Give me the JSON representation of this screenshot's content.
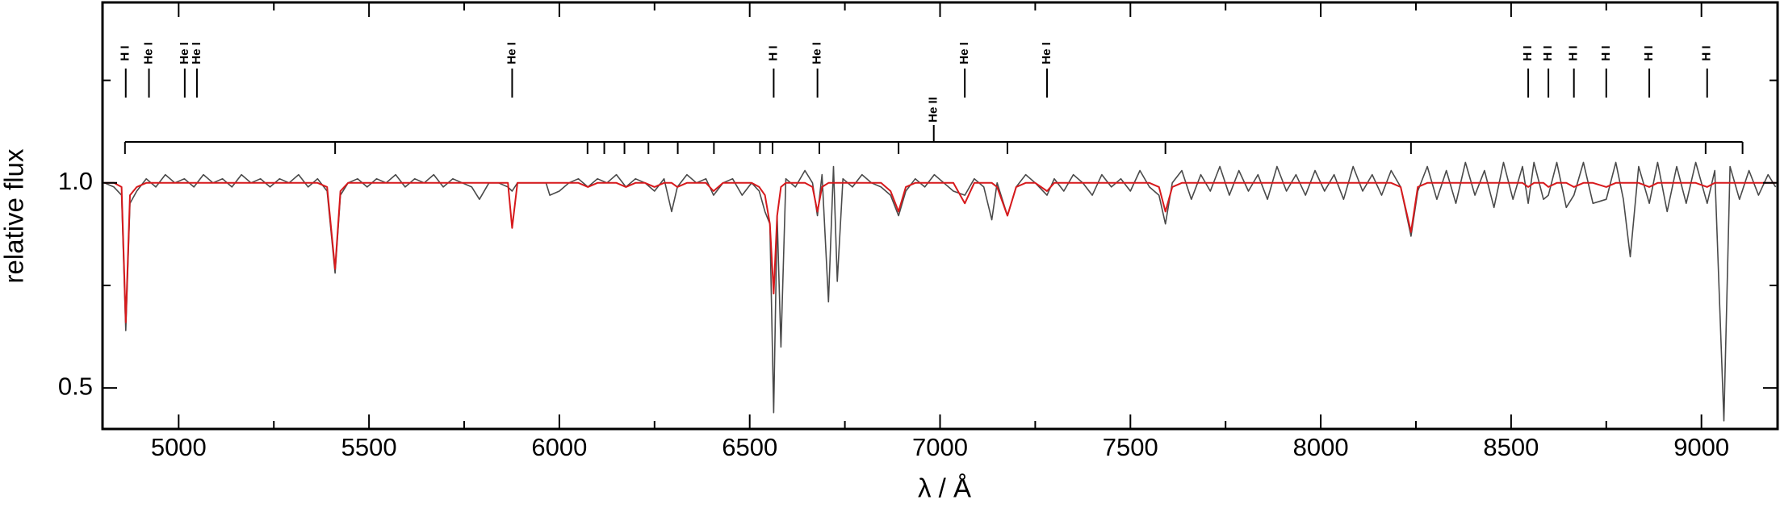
{
  "chart_data": {
    "type": "line",
    "xlabel": "λ / Å",
    "ylabel": "relative flux",
    "xlim": [
      4800,
      9200
    ],
    "ylim": [
      0.4,
      1.44
    ],
    "xticks": [
      5000,
      5500,
      6000,
      6500,
      7000,
      7500,
      8000,
      8500,
      9000
    ],
    "xminorticks": [
      5250,
      5750,
      6250,
      6750,
      7250,
      7750,
      8250,
      8750
    ],
    "yticks": [
      0.5,
      {
        "value": 1,
        "label": "1.0"
      }
    ],
    "yminorticks": [
      0.75,
      1.25
    ],
    "x": [
      4805,
      4830,
      4850,
      4861,
      4872,
      4890,
      4915,
      4940,
      4965,
      4990,
      5015,
      5040,
      5065,
      5090,
      5115,
      5140,
      5165,
      5190,
      5215,
      5240,
      5265,
      5290,
      5315,
      5340,
      5365,
      5390,
      5411,
      5425,
      5445,
      5470,
      5495,
      5520,
      5545,
      5570,
      5595,
      5620,
      5645,
      5670,
      5695,
      5720,
      5745,
      5770,
      5790,
      5815,
      5840,
      5865,
      5876,
      5890,
      5915,
      5940,
      5965,
      5975,
      6000,
      6025,
      6050,
      6075,
      6100,
      6125,
      6150,
      6175,
      6200,
      6225,
      6250,
      6275,
      6295,
      6310,
      6335,
      6360,
      6385,
      6405,
      6430,
      6455,
      6480,
      6505,
      6525,
      6540,
      6553,
      6563,
      6572,
      6582,
      6595,
      6620,
      6645,
      6665,
      6678,
      6690,
      6707,
      6720,
      6730,
      6745,
      6770,
      6795,
      6820,
      6845,
      6870,
      6891,
      6910,
      6935,
      6960,
      6985,
      7010,
      7035,
      7065,
      7090,
      7115,
      7136,
      7150,
      7177,
      7200,
      7225,
      7250,
      7281,
      7300,
      7325,
      7350,
      7375,
      7400,
      7425,
      7450,
      7475,
      7500,
      7525,
      7550,
      7575,
      7592,
      7610,
      7635,
      7660,
      7685,
      7710,
      7735,
      7760,
      7785,
      7810,
      7835,
      7860,
      7885,
      7910,
      7935,
      7960,
      7985,
      8010,
      8035,
      8060,
      8085,
      8110,
      8135,
      8160,
      8185,
      8210,
      8237,
      8255,
      8280,
      8305,
      8330,
      8355,
      8380,
      8405,
      8430,
      8455,
      8480,
      8505,
      8530,
      8545,
      8560,
      8585,
      8598,
      8620,
      8645,
      8665,
      8690,
      8715,
      8750,
      8775,
      8795,
      8813,
      8835,
      8863,
      8885,
      8910,
      8935,
      8960,
      8985,
      9015,
      9035,
      9059,
      9075,
      9100,
      9125,
      9150,
      9175,
      9195
    ],
    "series": [
      {
        "color": "#4a4a4a",
        "values": [
          1.0,
          0.99,
          0.97,
          0.64,
          0.95,
          0.98,
          1.01,
          0.99,
          1.02,
          1.0,
          1.01,
          0.99,
          1.02,
          1.0,
          1.01,
          0.99,
          1.02,
          1.0,
          1.01,
          0.99,
          1.01,
          1.0,
          1.02,
          0.99,
          1.01,
          0.98,
          0.78,
          0.97,
          1.0,
          1.01,
          0.99,
          1.01,
          1.0,
          1.02,
          0.99,
          1.01,
          1.0,
          1.02,
          0.99,
          1.01,
          1.0,
          0.99,
          0.96,
          1.0,
          1.0,
          0.99,
          0.98,
          1.0,
          1.0,
          1.0,
          1.0,
          0.97,
          0.98,
          1.0,
          1.01,
          0.99,
          1.01,
          1.0,
          1.02,
          0.99,
          1.01,
          1.0,
          0.98,
          1.01,
          0.93,
          0.99,
          1.02,
          1.0,
          1.01,
          0.97,
          1.0,
          1.01,
          0.97,
          1.0,
          0.98,
          0.93,
          0.9,
          0.44,
          0.92,
          0.6,
          1.01,
          0.99,
          1.03,
          1.0,
          0.92,
          1.02,
          0.71,
          1.04,
          0.76,
          1.01,
          0.99,
          1.02,
          1.0,
          0.99,
          0.97,
          0.92,
          0.98,
          1.01,
          0.99,
          1.02,
          1.0,
          0.98,
          0.97,
          1.01,
          0.99,
          0.91,
          1.0,
          0.92,
          0.99,
          1.02,
          1.0,
          0.97,
          1.01,
          0.98,
          1.02,
          1.0,
          0.97,
          1.02,
          0.99,
          1.01,
          0.98,
          1.03,
          0.99,
          0.97,
          0.9,
          1.0,
          1.03,
          0.96,
          1.02,
          0.98,
          1.04,
          0.97,
          1.03,
          0.98,
          1.02,
          0.96,
          1.04,
          0.98,
          1.02,
          0.97,
          1.03,
          0.98,
          1.02,
          0.96,
          1.04,
          0.98,
          1.02,
          0.97,
          1.03,
          0.99,
          0.87,
          0.98,
          1.04,
          0.96,
          1.03,
          0.95,
          1.05,
          0.97,
          1.03,
          0.94,
          1.05,
          0.96,
          1.04,
          0.95,
          1.05,
          0.96,
          0.97,
          1.05,
          0.94,
          0.97,
          1.05,
          0.95,
          0.96,
          1.05,
          0.96,
          0.82,
          1.04,
          0.95,
          1.05,
          0.93,
          1.04,
          0.95,
          1.05,
          0.95,
          1.03,
          0.42,
          1.04,
          0.96,
          1.03,
          0.97,
          1.02,
          0.99
        ]
      },
      {
        "color": "#d7191c",
        "values": [
          1.0,
          1.0,
          0.99,
          0.66,
          0.97,
          0.99,
          1.0,
          1.0,
          1.0,
          1.0,
          1.0,
          1.0,
          1.0,
          1.0,
          1.0,
          1.0,
          1.0,
          1.0,
          1.0,
          1.0,
          1.0,
          1.0,
          1.0,
          1.0,
          1.0,
          0.99,
          0.79,
          0.98,
          1.0,
          1.0,
          1.0,
          1.0,
          1.0,
          1.0,
          1.0,
          1.0,
          1.0,
          1.0,
          1.0,
          1.0,
          1.0,
          1.0,
          1.0,
          1.0,
          1.0,
          1.0,
          0.89,
          1.0,
          1.0,
          1.0,
          1.0,
          1.0,
          1.0,
          1.0,
          1.0,
          0.99,
          1.0,
          1.0,
          1.0,
          0.99,
          1.0,
          1.0,
          0.99,
          1.0,
          1.0,
          0.99,
          1.0,
          1.0,
          1.0,
          0.98,
          1.0,
          1.0,
          1.0,
          1.0,
          0.99,
          0.97,
          0.9,
          0.73,
          0.92,
          0.99,
          1.0,
          1.0,
          1.0,
          0.99,
          0.93,
          0.99,
          1.0,
          1.0,
          1.0,
          1.0,
          1.0,
          1.0,
          1.0,
          1.0,
          0.98,
          0.93,
          0.99,
          1.0,
          1.0,
          1.0,
          1.0,
          1.0,
          0.95,
          1.0,
          1.0,
          1.0,
          0.99,
          0.92,
          0.99,
          1.0,
          1.0,
          0.98,
          1.0,
          1.0,
          1.0,
          1.0,
          1.0,
          1.0,
          1.0,
          1.0,
          1.0,
          1.0,
          1.0,
          0.99,
          0.93,
          0.99,
          1.0,
          1.0,
          1.0,
          1.0,
          1.0,
          1.0,
          1.0,
          1.0,
          1.0,
          1.0,
          1.0,
          1.0,
          1.0,
          1.0,
          1.0,
          1.0,
          1.0,
          1.0,
          1.0,
          1.0,
          1.0,
          1.0,
          1.0,
          0.99,
          0.88,
          0.99,
          1.0,
          1.0,
          1.0,
          1.0,
          1.0,
          1.0,
          1.0,
          1.0,
          1.0,
          1.0,
          1.0,
          0.99,
          1.0,
          1.0,
          0.99,
          1.0,
          1.0,
          0.99,
          1.0,
          1.0,
          0.99,
          1.0,
          1.0,
          1.0,
          1.0,
          0.99,
          1.0,
          1.0,
          1.0,
          1.0,
          1.0,
          0.99,
          1.0,
          1.0,
          1.0,
          1.0,
          1.0,
          1.0,
          1.0,
          1.0
        ]
      }
    ],
    "line_ids": [
      {
        "label": "H I",
        "x": 4861
      },
      {
        "label": "He I",
        "x": 4922
      },
      {
        "label": "He I",
        "x": 5016
      },
      {
        "label": "He I",
        "x": 5048
      },
      {
        "label": "He I",
        "x": 5876
      },
      {
        "label": "H I",
        "x": 6563
      },
      {
        "label": "He I",
        "x": 6678
      },
      {
        "label": "He I",
        "x": 7065
      },
      {
        "label": "He I",
        "x": 7281
      },
      {
        "label": "H I",
        "x": 8545
      },
      {
        "label": "H I",
        "x": 8598
      },
      {
        "label": "H I",
        "x": 8665
      },
      {
        "label": "H I",
        "x": 8750
      },
      {
        "label": "H I",
        "x": 8863
      },
      {
        "label": "H I",
        "x": 9015
      }
    ],
    "bracket": {
      "label": "He II",
      "x": [
        4859,
        5411,
        6074,
        6118,
        6171,
        6234,
        6311,
        6406,
        6527,
        6560,
        6683,
        6891,
        7177,
        7592,
        8237,
        9011,
        9108
      ]
    }
  }
}
